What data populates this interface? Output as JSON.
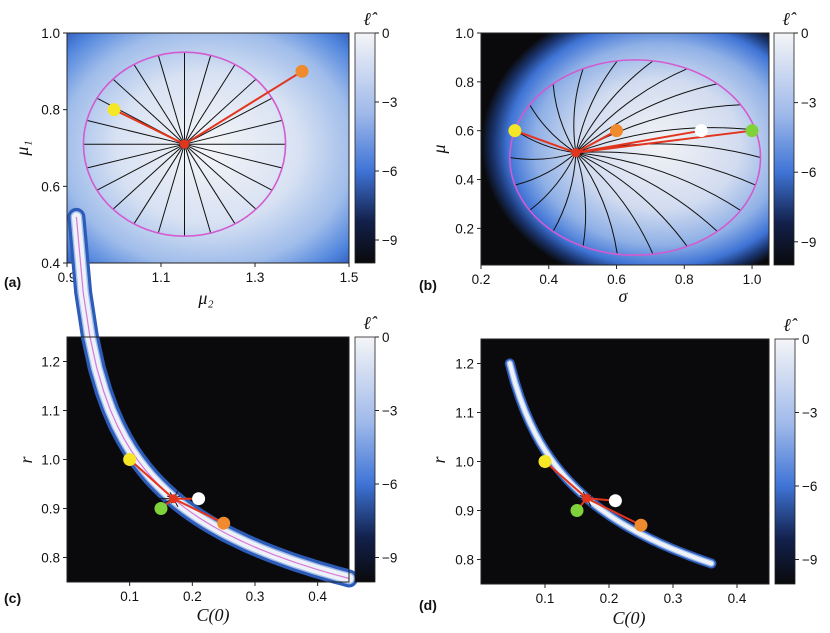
{
  "colorbar": {
    "label": "ℓ̂",
    "ticks": [
      "0",
      "−3",
      "−6",
      "−9"
    ],
    "min": -10,
    "max": 0
  },
  "colors": {
    "background_dark": "#0a0a0c",
    "map_light": "#f2f3f5",
    "map_blue": "#3f74d6",
    "contour": "#d25bd0",
    "path_red": "#e3341e",
    "path_black": "#111111",
    "yellow": "#f5e626",
    "orange": "#f08a2e",
    "green": "#7fd23a",
    "white": "#ffffff"
  },
  "chart_data": [
    {
      "type": "heatmap",
      "panel": "(a)",
      "xlabel": "μ₂",
      "ylabel": "μ₁",
      "xlim": [
        0.9,
        1.5
      ],
      "ylim": [
        0.4,
        1.0
      ],
      "xticks": [
        "0.9",
        "1.1",
        "1.3",
        "1.5"
      ],
      "yticks": [
        "0.4",
        "0.6",
        "0.8",
        "1.0"
      ],
      "optimum": [
        1.15,
        0.71
      ],
      "contour": {
        "center": [
          1.15,
          0.71
        ],
        "rx": 0.215,
        "ry": 0.24
      },
      "start_points": [
        {
          "color": "yellow",
          "x": 1.0,
          "y": 0.8
        },
        {
          "color": "orange",
          "x": 1.4,
          "y": 0.9
        }
      ]
    },
    {
      "type": "heatmap",
      "panel": "(b)",
      "xlabel": "σ",
      "ylabel": "μ",
      "xlim": [
        0.2,
        1.05
      ],
      "ylim": [
        0.05,
        1.0
      ],
      "xticks": [
        "0.2",
        "0.4",
        "0.6",
        "0.8",
        "1.0"
      ],
      "yticks": [
        "0.2",
        "0.4",
        "0.6",
        "0.8",
        "1.0"
      ],
      "optimum": [
        0.48,
        0.51
      ],
      "contour": {
        "center": [
          0.655,
          0.49
        ],
        "rx": 0.37,
        "ry": 0.4
      },
      "start_points": [
        {
          "color": "yellow",
          "x": 0.3,
          "y": 0.6
        },
        {
          "color": "orange",
          "x": 0.6,
          "y": 0.6
        },
        {
          "color": "white",
          "x": 0.85,
          "y": 0.6
        },
        {
          "color": "green",
          "x": 1.0,
          "y": 0.6
        }
      ]
    },
    {
      "type": "heatmap",
      "panel": "(c)",
      "xlabel": "C(0)",
      "ylabel": "r",
      "xlim": [
        0.0,
        0.45
      ],
      "ylim": [
        0.75,
        1.25
      ],
      "xticks": [
        "0.1",
        "0.2",
        "0.3",
        "0.4"
      ],
      "yticks": [
        "0.8",
        "0.9",
        "1.0",
        "1.1",
        "1.2"
      ],
      "optimum": [
        0.17,
        0.92
      ],
      "start_points": [
        {
          "color": "yellow",
          "x": 0.1,
          "y": 1.0
        },
        {
          "color": "white",
          "x": 0.21,
          "y": 0.92
        },
        {
          "color": "green",
          "x": 0.15,
          "y": 0.9
        },
        {
          "color": "orange",
          "x": 0.25,
          "y": 0.87
        }
      ]
    },
    {
      "type": "heatmap",
      "panel": "(d)",
      "xlabel": "C(0)",
      "ylabel": "r",
      "xlim": [
        0.0,
        0.45
      ],
      "ylim": [
        0.75,
        1.25
      ],
      "xticks": [
        "0.1",
        "0.2",
        "0.3",
        "0.4"
      ],
      "yticks": [
        "0.8",
        "0.9",
        "1.0",
        "1.1",
        "1.2"
      ],
      "optimum": [
        0.165,
        0.925
      ],
      "start_points": [
        {
          "color": "yellow",
          "x": 0.1,
          "y": 1.0
        },
        {
          "color": "white",
          "x": 0.21,
          "y": 0.92
        },
        {
          "color": "green",
          "x": 0.15,
          "y": 0.9
        },
        {
          "color": "orange",
          "x": 0.25,
          "y": 0.87
        }
      ]
    }
  ]
}
